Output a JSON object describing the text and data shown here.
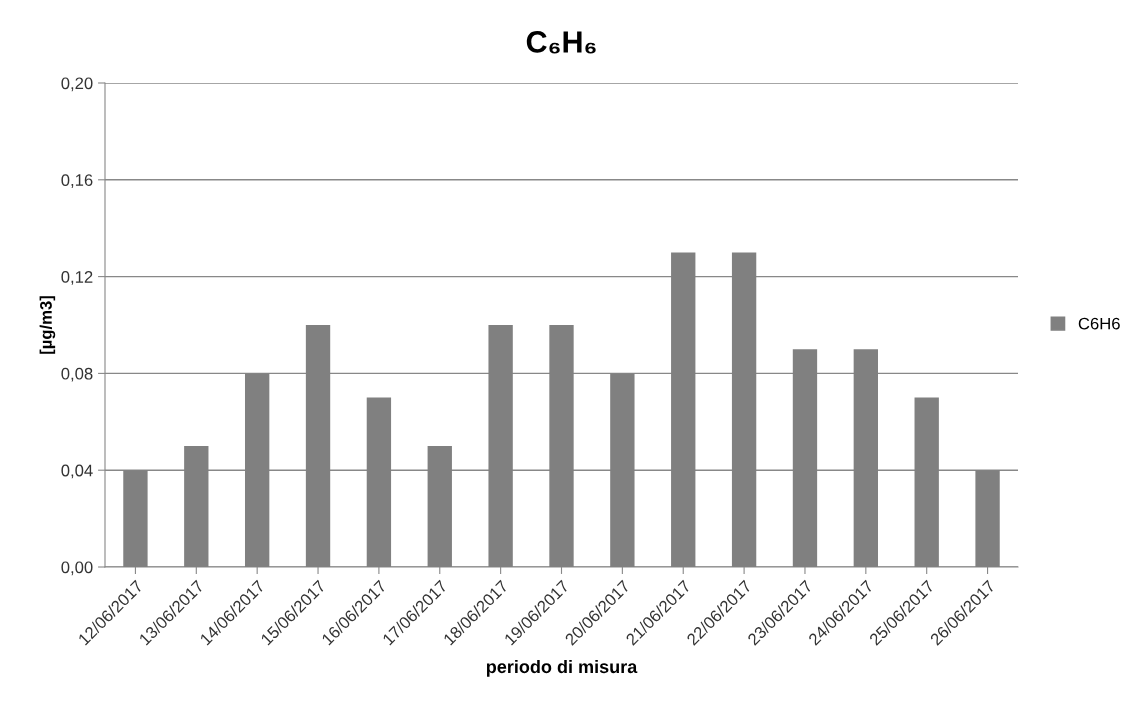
{
  "chart_data": {
    "type": "bar",
    "title": "C₆H₆",
    "xlabel": "periodo di misura",
    "ylabel": "[µg/m3]",
    "categories": [
      "12/06/2017",
      "13/06/2017",
      "14/06/2017",
      "15/06/2017",
      "16/06/2017",
      "17/06/2017",
      "18/06/2017",
      "19/06/2017",
      "20/06/2017",
      "21/06/2017",
      "22/06/2017",
      "23/06/2017",
      "24/06/2017",
      "25/06/2017",
      "26/06/2017"
    ],
    "series": [
      {
        "name": "C6H6",
        "color": "#808080",
        "values": [
          0.04,
          0.05,
          0.08,
          0.1,
          0.07,
          0.05,
          0.1,
          0.1,
          0.08,
          0.13,
          0.13,
          0.09,
          0.09,
          0.07,
          0.04
        ]
      }
    ],
    "ylim": [
      0,
      0.2
    ],
    "yticks": [
      {
        "value": 0,
        "label": "0,00"
      },
      {
        "value": 0.04,
        "label": "0,04"
      },
      {
        "value": 0.08,
        "label": "0,08"
      },
      {
        "value": 0.12,
        "label": "0,12"
      },
      {
        "value": 0.16,
        "label": "0,16"
      },
      {
        "value": 0.2,
        "label": "0,20"
      }
    ],
    "grid": "y",
    "legend": "right"
  }
}
